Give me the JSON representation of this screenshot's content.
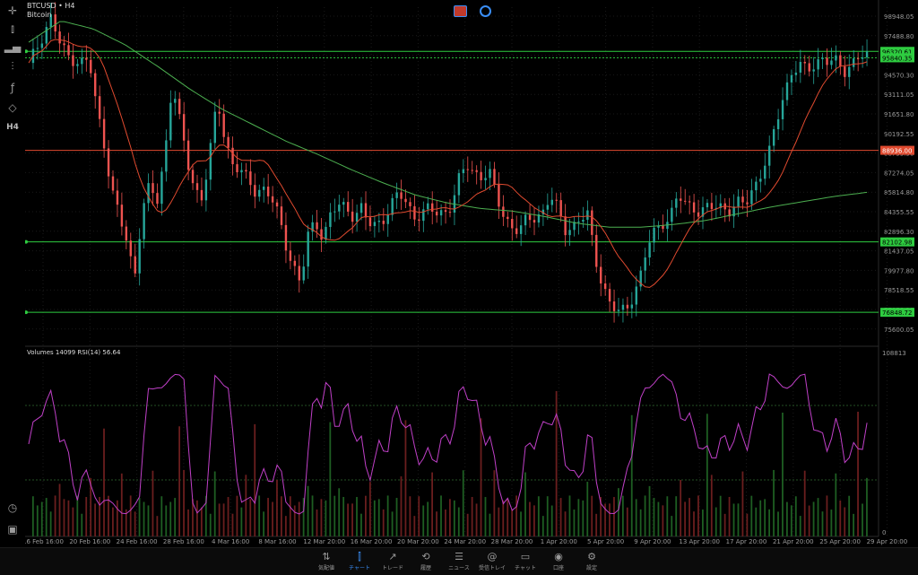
{
  "symbol": {
    "name": "BTCUSD • H4",
    "desc": "Bitcoin"
  },
  "price_axis": [
    "98948.05",
    "97488.80",
    "96029.55",
    "94570.30",
    "93111.05",
    "91651.80",
    "90192.55",
    "88733.30",
    "87274.05",
    "85814.80",
    "84355.55",
    "82896.30",
    "81437.05",
    "79977.80",
    "78518.55",
    "77059.30",
    "75600.05"
  ],
  "price_tags": [
    {
      "label": "96320.61",
      "color": "#2ecc40"
    },
    {
      "label": "95840.35",
      "color": "#2ecc40"
    },
    {
      "label": "88936.00",
      "color": "#e04a2f"
    },
    {
      "label": "82102.98",
      "color": "#2ecc40"
    },
    {
      "label": "76848.72",
      "color": "#2ecc40"
    }
  ],
  "indicator": {
    "label": "Volumes 14099  RSI(14) 56.64",
    "axis_top": "108813",
    "axis_bottom": "0"
  },
  "time_axis": [
    "16 Feb 16:00",
    "20 Feb 16:00",
    "24 Feb 16:00",
    "28 Feb 16:00",
    "4 Mar 16:00",
    "8 Mar 16:00",
    "12 Mar 20:00",
    "16 Mar 20:00",
    "20 Mar 20:00",
    "24 Mar 20:00",
    "28 Mar 20:00",
    "1 Apr 20:00",
    "5 Apr 20:00",
    "9 Apr 20:00",
    "13 Apr 20:00",
    "17 Apr 20:00",
    "21 Apr 20:00",
    "25 Apr 20:00",
    "29 Apr 20:00"
  ],
  "toolbar_icons": [
    "crosshair-icon",
    "candles-icon",
    "bars-icon",
    "indicators-icon",
    "function-icon",
    "objects-icon"
  ],
  "toolbar_timeframe": "H4",
  "nav": [
    {
      "label": "気配値",
      "icon": "⇅"
    },
    {
      "label": "チャート",
      "icon": "⫿",
      "active": true
    },
    {
      "label": "トレード",
      "icon": "↗"
    },
    {
      "label": "履歴",
      "icon": "⟲"
    },
    {
      "label": "ニュース",
      "icon": "☰"
    },
    {
      "label": "受信トレイ",
      "icon": "@"
    },
    {
      "label": "チャット",
      "icon": "▭"
    },
    {
      "label": "口座",
      "icon": "◉"
    },
    {
      "label": "設定",
      "icon": "⚙"
    }
  ],
  "colors": {
    "bull": "#26a69a",
    "bear": "#ef5350",
    "ma_fast": "#e04a2f",
    "ma_slow": "#4caf50",
    "rsi": "#c040c8",
    "level": "#2ecc40",
    "red_level": "#e04a2f"
  }
}
